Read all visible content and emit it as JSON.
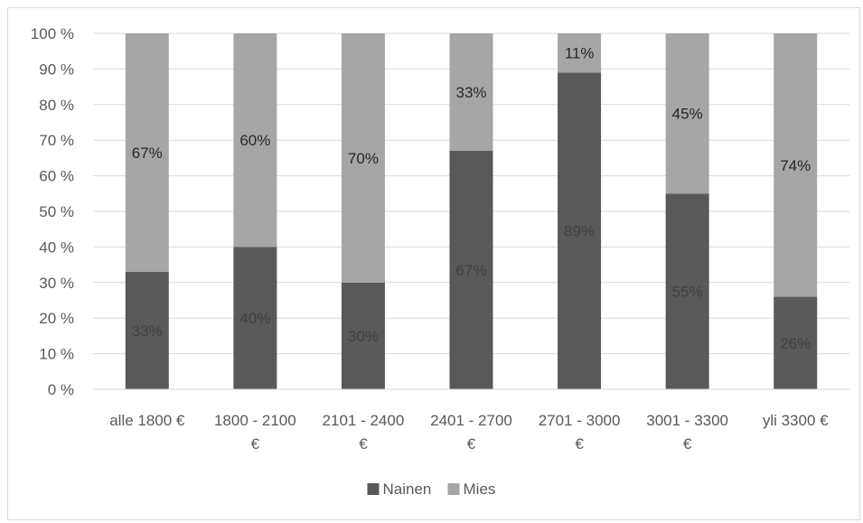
{
  "chart_data": {
    "type": "bar",
    "stacked": true,
    "percent": true,
    "categories": [
      [
        "alle 1800 €"
      ],
      [
        "1800 - 2100",
        "€"
      ],
      [
        "2101 - 2400",
        "€"
      ],
      [
        "2401 - 2700",
        "€"
      ],
      [
        "2701 - 3000",
        "€"
      ],
      [
        "3001 - 3300",
        "€"
      ],
      [
        "yli 3300 €"
      ]
    ],
    "series": [
      {
        "name": "Nainen",
        "color": "#595959",
        "label_color": "#404040",
        "values": [
          33,
          40,
          30,
          67,
          89,
          55,
          26
        ],
        "labels": [
          "33%",
          "40%",
          "30%",
          "67%",
          "89%",
          "55%",
          "26%"
        ]
      },
      {
        "name": "Mies",
        "color": "#a6a6a6",
        "label_color": "#262626",
        "values": [
          67,
          60,
          70,
          33,
          11,
          45,
          74
        ],
        "labels": [
          "67%",
          "60%",
          "70%",
          "33%",
          "11%",
          "45%",
          "74%"
        ]
      }
    ],
    "yticks": [
      "0 %",
      "10 %",
      "20 %",
      "30 %",
      "40 %",
      "50 %",
      "60 %",
      "70 %",
      "80 %",
      "90 %",
      "100 %"
    ],
    "ylim": [
      0,
      100
    ],
    "grid": true,
    "legend": "bottom"
  }
}
